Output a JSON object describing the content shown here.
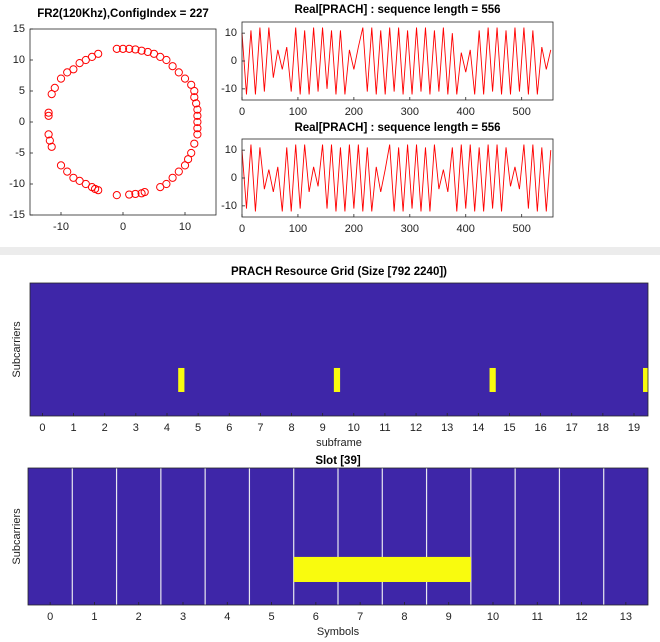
{
  "chart_data": [
    {
      "type": "scatter",
      "title": "FR2(120Khz),ConfigIndex = 227",
      "color": "#ff0000",
      "x": [
        -1,
        0,
        1,
        2,
        3,
        4,
        5,
        -4,
        -5,
        -6,
        -7,
        -8,
        -9,
        -10,
        -11,
        -11.5,
        -12,
        -12,
        -12,
        -11.8,
        -11.5,
        -10,
        -9,
        -8,
        -7,
        -6,
        -5,
        -4.5,
        -4,
        -1,
        1,
        2,
        3,
        3.5,
        6,
        7,
        8,
        9,
        10,
        10.5,
        11,
        11.5,
        12,
        12,
        12,
        12,
        12,
        11.8,
        11.5,
        11.5,
        11,
        10,
        9,
        8,
        7,
        6
      ],
      "values": [
        11.8,
        11.8,
        11.8,
        11.7,
        11.5,
        11.3,
        11,
        11,
        10.5,
        10,
        9.5,
        8.5,
        8,
        7,
        5.5,
        4.5,
        1.5,
        1,
        -2,
        -3,
        -4,
        -7,
        -8,
        -9,
        -9.5,
        -10,
        -10.5,
        -10.8,
        -11,
        -11.8,
        -11.7,
        -11.6,
        -11.5,
        -11.3,
        -10.5,
        -10,
        -9,
        -8,
        -7,
        -6,
        -5,
        -3.5,
        -2,
        -1,
        0,
        1,
        2,
        3,
        4,
        5,
        6,
        7,
        8,
        9,
        10,
        10.5
      ],
      "xlim": [
        -15,
        15
      ],
      "xticks": [
        -10,
        0,
        10
      ],
      "ylim": [
        -15,
        15
      ],
      "yticks": [
        -15,
        -10,
        -5,
        0,
        5,
        10,
        15
      ]
    },
    {
      "type": "line",
      "title": "Real[PRACH] : sequence length = 556",
      "color": "#ff0000",
      "x": [
        0,
        8,
        16,
        24,
        32,
        40,
        48,
        56,
        64,
        72,
        80,
        88,
        96,
        104,
        112,
        120,
        128,
        136,
        144,
        152,
        160,
        168,
        176,
        184,
        192,
        200,
        208,
        216,
        224,
        232,
        240,
        248,
        256,
        264,
        272,
        280,
        288,
        296,
        304,
        312,
        320,
        328,
        336,
        344,
        352,
        360,
        368,
        376,
        384,
        392,
        400,
        408,
        416,
        424,
        432,
        440,
        448,
        456,
        464,
        472,
        480,
        488,
        496,
        504,
        512,
        520,
        528,
        536,
        544,
        552
      ],
      "values": [
        10,
        -12,
        11,
        -12,
        12,
        -11,
        12,
        -6,
        4,
        -3,
        5,
        -11,
        12,
        -12,
        11,
        -12,
        12,
        -11,
        12,
        -10,
        11,
        -12,
        11,
        -12,
        4,
        -3,
        5,
        12,
        -11,
        12,
        -12,
        11,
        -12,
        12,
        -11,
        12,
        -12,
        11,
        -12,
        12,
        -11,
        12,
        -12,
        11,
        -11,
        12,
        -12,
        10,
        -12,
        3,
        -4,
        4,
        -12,
        11,
        -12,
        12,
        -11,
        12,
        -12,
        11,
        -12,
        12,
        -11,
        12,
        -12,
        11,
        -12,
        5,
        -3,
        4
      ],
      "xlim": [
        0,
        556
      ],
      "xticks": [
        0,
        100,
        200,
        300,
        400,
        500
      ],
      "ylim": [
        -14,
        14
      ],
      "yticks": [
        -10,
        0,
        10
      ]
    },
    {
      "type": "line",
      "title": "Real[PRACH] : sequence length = 556",
      "color": "#ff0000",
      "x": [
        0,
        8,
        16,
        24,
        32,
        40,
        48,
        56,
        64,
        72,
        80,
        88,
        96,
        104,
        112,
        120,
        128,
        136,
        144,
        152,
        160,
        168,
        176,
        184,
        192,
        200,
        208,
        216,
        224,
        232,
        240,
        248,
        256,
        264,
        272,
        280,
        288,
        296,
        304,
        312,
        320,
        328,
        336,
        344,
        352,
        360,
        368,
        376,
        384,
        392,
        400,
        408,
        416,
        424,
        432,
        440,
        448,
        456,
        464,
        472,
        480,
        488,
        496,
        504,
        512,
        520,
        528,
        536,
        544,
        552
      ],
      "values": [
        10,
        -11,
        12,
        -12,
        11,
        -4,
        3,
        -5,
        4,
        -12,
        11,
        -12,
        12,
        -11,
        12,
        -5,
        4,
        -3,
        12,
        -11,
        12,
        -12,
        11,
        -12,
        12,
        -11,
        12,
        -12,
        11,
        -12,
        4,
        -5,
        3,
        12,
        -12,
        11,
        -12,
        12,
        -11,
        12,
        -12,
        11,
        -12,
        12,
        -4,
        3,
        -5,
        11,
        -12,
        12,
        -11,
        12,
        -12,
        11,
        -12,
        12,
        -11,
        12,
        -12,
        11,
        -3,
        4,
        -4,
        12,
        -11,
        12,
        -12,
        11,
        -12,
        10
      ],
      "xlim": [
        0,
        556
      ],
      "xticks": [
        0,
        100,
        200,
        300,
        400,
        500
      ],
      "ylim": [
        -14,
        14
      ],
      "yticks": [
        -10,
        0,
        10
      ]
    },
    {
      "type": "heatmap",
      "title": "PRACH Resource Grid (Size [792 2240])",
      "x_label": "subframe",
      "y_label": "Subcarriers",
      "background": "#3e26a8",
      "block_color": "#f9fb0e",
      "blocks": [
        {
          "x": [
            4.36,
            4.56
          ],
          "y": [
            506,
            649
          ]
        },
        {
          "x": [
            9.36,
            9.56
          ],
          "y": [
            506,
            649
          ]
        },
        {
          "x": [
            14.36,
            14.56
          ],
          "y": [
            506,
            649
          ]
        },
        {
          "x": [
            19.29,
            19.45
          ],
          "y": [
            506,
            649
          ]
        }
      ],
      "xlim": [
        -0.4,
        19.45
      ],
      "xticks": [
        0,
        1,
        2,
        3,
        4,
        5,
        6,
        7,
        8,
        9,
        10,
        11,
        12,
        13,
        14,
        15,
        16,
        17,
        18,
        19
      ],
      "ylim": [
        0,
        792
      ],
      "y_reversed": true,
      "grid": false
    },
    {
      "type": "heatmap",
      "title": "Slot [39]",
      "x_label": "Symbols",
      "y_label": "Subcarriers",
      "background": "#3e26a8",
      "block_color": "#f9fb0e",
      "blocks": [
        {
          "x": [
            5.5,
            9.5
          ],
          "y": [
            514,
            659
          ]
        }
      ],
      "xlim": [
        -0.5,
        13.5
      ],
      "xticks": [
        0,
        1,
        2,
        3,
        4,
        5,
        6,
        7,
        8,
        9,
        10,
        11,
        12,
        13
      ],
      "ylim": [
        0,
        792
      ],
      "y_reversed": true,
      "grid": true
    }
  ]
}
